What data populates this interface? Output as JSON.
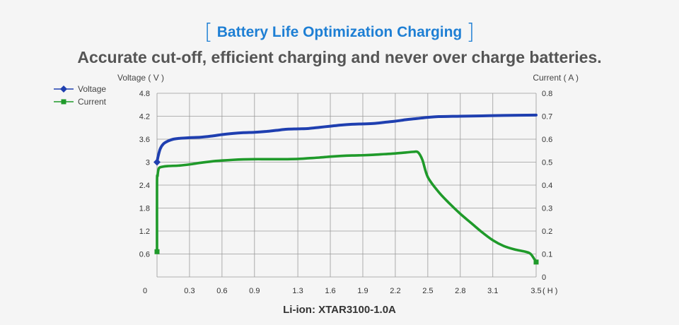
{
  "header": {
    "title": "Battery Life Optimization Charging",
    "subtitle": "Accurate cut-off, efficient charging and never over charge batteries."
  },
  "chart_data": {
    "type": "line",
    "title": "Battery Life Optimization Charging",
    "subtitle": "Accurate cut-off, efficient charging and never over charge batteries.",
    "caption": "Li-ion: XTAR3100-1.0A",
    "xlabel": "( H )",
    "ylabel_left": "Voltage ( V )",
    "ylabel_right": "Current ( A )",
    "xlim": [
      0,
      3.5
    ],
    "ylim_left": [
      0,
      4.8
    ],
    "ylim_right": [
      0,
      0.8
    ],
    "x_ticks": [
      "0",
      "0.3",
      "0.6",
      "0.9",
      "1.3",
      "1.6",
      "1.9",
      "2.2",
      "2.5",
      "2.8",
      "3.1",
      "3.5"
    ],
    "y_left_ticks": [
      "0.6",
      "1.2",
      "1.8",
      "2.4",
      "3",
      "3.6",
      "4.2",
      "4.8"
    ],
    "y_right_ticks": [
      "0",
      "0.1",
      "0.2",
      "0.3",
      "0.4",
      "0.5",
      "0.6",
      "0.7",
      "0.8"
    ],
    "grid": true,
    "legend": "top-left",
    "colors": {
      "voltage": "#1f3fb0",
      "current": "#1f9a2a",
      "title": "#1e7fd4",
      "grid": "#9a9a9a"
    },
    "series": [
      {
        "name": "Voltage",
        "axis": "left",
        "marker": "diamond",
        "x": [
          0.0,
          0.01,
          0.03,
          0.06,
          0.1,
          0.15,
          0.2,
          0.3,
          0.4,
          0.5,
          0.6,
          0.7,
          0.8,
          0.9,
          1.0,
          1.1,
          1.2,
          1.3,
          1.4,
          1.5,
          1.6,
          1.7,
          1.8,
          1.9,
          2.0,
          2.1,
          2.2,
          2.3,
          2.4,
          2.5,
          2.6,
          2.8,
          3.0,
          3.2,
          3.5
        ],
        "y": [
          3.0,
          3.15,
          3.35,
          3.48,
          3.55,
          3.6,
          3.62,
          3.64,
          3.65,
          3.68,
          3.72,
          3.75,
          3.77,
          3.78,
          3.8,
          3.83,
          3.86,
          3.87,
          3.88,
          3.91,
          3.94,
          3.97,
          3.99,
          4.0,
          4.01,
          4.04,
          4.07,
          4.11,
          4.14,
          4.17,
          4.19,
          4.2,
          4.21,
          4.22,
          4.23
        ]
      },
      {
        "name": "Current",
        "axis": "right",
        "marker": "square",
        "x": [
          0.0,
          0.0,
          0.005,
          0.01,
          0.02,
          0.05,
          0.1,
          0.2,
          0.3,
          0.4,
          0.5,
          0.6,
          0.7,
          0.8,
          0.9,
          1.0,
          1.1,
          1.2,
          1.3,
          1.4,
          1.5,
          1.6,
          1.7,
          1.8,
          1.9,
          2.0,
          2.1,
          2.2,
          2.3,
          2.37,
          2.41,
          2.45,
          2.5,
          2.6,
          2.7,
          2.8,
          2.9,
          3.0,
          3.1,
          3.2,
          3.3,
          3.4,
          3.45,
          3.5
        ],
        "y": [
          0.11,
          0.41,
          0.44,
          0.46,
          0.475,
          0.48,
          0.483,
          0.485,
          0.49,
          0.497,
          0.503,
          0.507,
          0.51,
          0.512,
          0.513,
          0.513,
          0.513,
          0.513,
          0.514,
          0.517,
          0.52,
          0.524,
          0.527,
          0.529,
          0.53,
          0.532,
          0.535,
          0.538,
          0.542,
          0.545,
          0.543,
          0.51,
          0.435,
          0.37,
          0.32,
          0.275,
          0.235,
          0.195,
          0.16,
          0.135,
          0.12,
          0.11,
          0.1,
          0.065
        ]
      }
    ]
  }
}
